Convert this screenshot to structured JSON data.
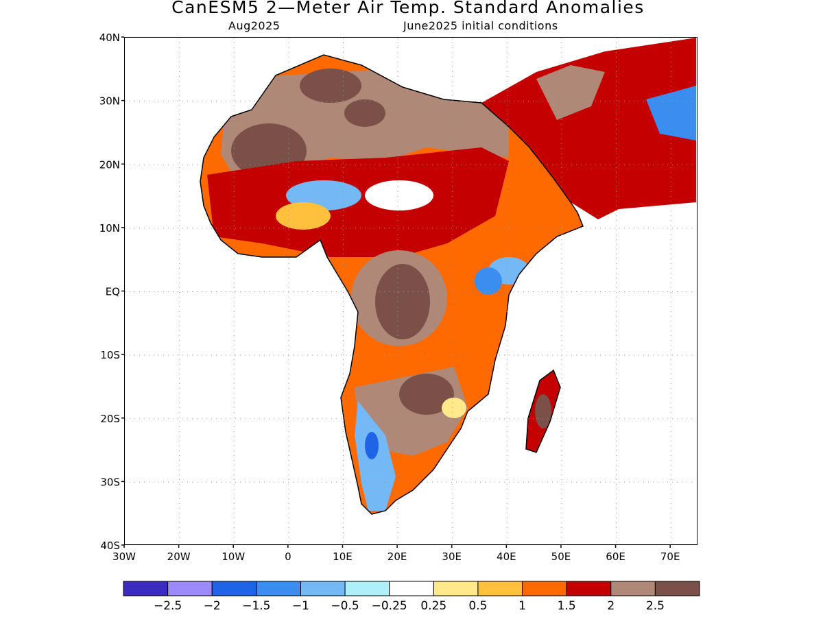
{
  "header": {
    "title": "CanESM5 2—Meter Air Temp. Standard Anomalies",
    "subtitle_left": "Aug2025",
    "subtitle_right": "June2025 initial conditions"
  },
  "map": {
    "region": "Africa",
    "projection": "lat-lon",
    "lon_range": [
      -30,
      75
    ],
    "lat_range": [
      -40,
      40
    ],
    "gridlines": "dotted",
    "y_ticks": [
      "40N",
      "30N",
      "20N",
      "10N",
      "EQ",
      "10S",
      "20S",
      "30S",
      "40S"
    ],
    "x_ticks": [
      "30W",
      "20W",
      "10W",
      "0",
      "10E",
      "20E",
      "30E",
      "40E",
      "50E",
      "60E",
      "70E"
    ]
  },
  "colorbar": {
    "colors": [
      "#3b2bc0",
      "#9b8af8",
      "#1f63e6",
      "#3a8ef0",
      "#74b8f6",
      "#aef0f8",
      "#ffffff",
      "#ffe98a",
      "#ffc03c",
      "#ff6a00",
      "#c40000",
      "#b08878",
      "#7a5048"
    ],
    "labels": [
      "−2.5",
      "−2",
      "−1.5",
      "−1",
      "−0.5",
      "−0.25",
      "0.25",
      "0.5",
      "1",
      "1.5",
      "2",
      "2.5"
    ]
  }
}
